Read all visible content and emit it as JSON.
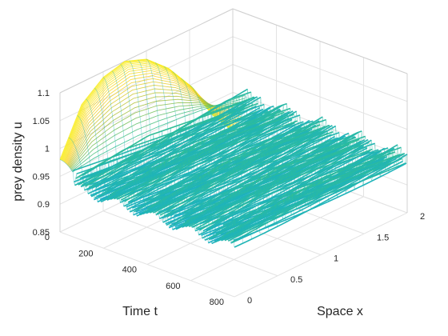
{
  "chart_data": {
    "type": "surface",
    "xlabel": "Space x",
    "ylabel": "Time t",
    "zlabel": "prey density u",
    "x_ticks": [
      "0",
      "0.5",
      "1",
      "1.5",
      "2"
    ],
    "y_ticks": [
      "0",
      "200",
      "400",
      "600",
      "800"
    ],
    "z_ticks": [
      "0.85",
      "0.9",
      "0.95",
      "1",
      "1.05",
      "1.1"
    ],
    "xlim": [
      0,
      2
    ],
    "ylim": [
      0,
      800
    ],
    "zlim": [
      0.85,
      1.1
    ],
    "grid": true,
    "colormap": "parula",
    "colormap_stops": [
      "#3e26a8",
      "#2d8ef5",
      "#1cb2c1",
      "#36c18a",
      "#a3bd3a",
      "#f9d229",
      "#f9fb15"
    ],
    "surface": {
      "initial_profile_x": [
        0,
        0.25,
        0.5,
        0.75,
        1.0,
        1.25,
        1.5,
        1.75,
        2.0
      ],
      "initial_profile_u": [
        0.98,
        1.06,
        1.09,
        1.1,
        1.085,
        1.05,
        1.0,
        0.93,
        0.88
      ],
      "plateau_u_at_x0": 0.965,
      "plateau_u_at_x2": 0.96,
      "plateau_u_min": 0.92,
      "transient_end_t": 60
    }
  }
}
